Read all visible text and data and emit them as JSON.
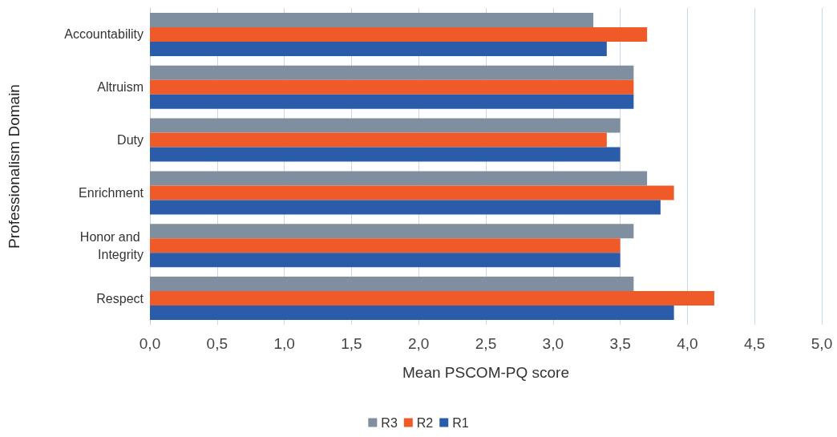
{
  "chart_data": {
    "type": "bar",
    "orientation": "horizontal",
    "xlabel": "Mean PSCOM-PQ score",
    "ylabel": "Professionalism Domain",
    "categories": [
      "Accountability",
      "Altruism",
      "Duty",
      "Enrichment",
      "Honor and Integrity",
      "Respect"
    ],
    "series": [
      {
        "name": "R3",
        "color": "#7f8fa0",
        "values": [
          3.3,
          3.6,
          3.5,
          3.7,
          3.6,
          3.6
        ]
      },
      {
        "name": "R2",
        "color": "#f05a28",
        "values": [
          3.7,
          3.6,
          3.4,
          3.9,
          3.5,
          4.2
        ]
      },
      {
        "name": "R1",
        "color": "#2a5caa",
        "values": [
          3.4,
          3.6,
          3.5,
          3.8,
          3.5,
          3.9
        ]
      }
    ],
    "xlim": [
      0,
      5
    ],
    "xticks": [
      {
        "value": 0,
        "label": "0,0"
      },
      {
        "value": 0.5,
        "label": "0,5"
      },
      {
        "value": 1,
        "label": "1,0"
      },
      {
        "value": 1.5,
        "label": "1,5"
      },
      {
        "value": 2,
        "label": "2,0"
      },
      {
        "value": 2.5,
        "label": "2,5"
      },
      {
        "value": 3,
        "label": "3,0"
      },
      {
        "value": 3.5,
        "label": "3,5"
      },
      {
        "value": 4,
        "label": "4,0"
      },
      {
        "value": 4.5,
        "label": "4,5"
      },
      {
        "value": 5,
        "label": "5,0"
      }
    ],
    "grid": "x",
    "legend": "bottom"
  }
}
